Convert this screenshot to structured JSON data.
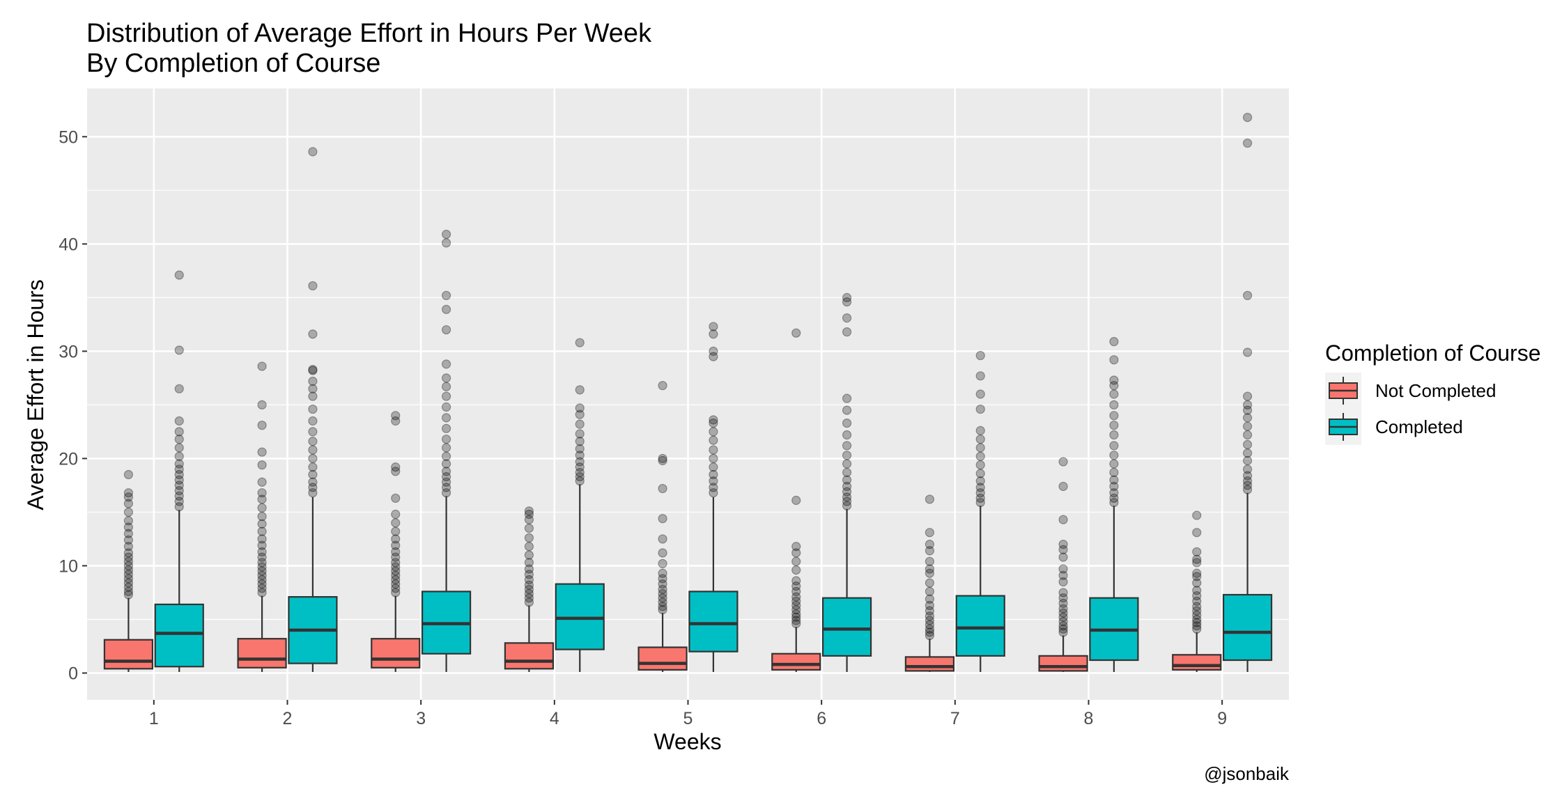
{
  "chart_data": {
    "type": "boxplot",
    "title": "Distribution of Average Effort in Hours Per Week",
    "subtitle": "By Completion of Course",
    "xlabel": "Weeks",
    "ylabel": "Average Effort in Hours",
    "caption": "@jsonbaik",
    "categories": [
      "1",
      "2",
      "3",
      "4",
      "5",
      "6",
      "7",
      "8",
      "9"
    ],
    "ylim": [
      -2.5,
      54.5
    ],
    "yticks": [
      0,
      10,
      20,
      30,
      40,
      50
    ],
    "grid": true,
    "panel_background": "#ebebeb",
    "legend": {
      "title": "Completion of Course",
      "position": "right",
      "entries": [
        "Not Completed",
        "Completed"
      ]
    },
    "series": [
      {
        "name": "Not Completed",
        "color": "#f8766d",
        "boxes": [
          {
            "week": "1",
            "min": 0.1,
            "q1": 0.4,
            "median": 1.1,
            "q3": 3.1,
            "whisker_high": 7.0,
            "outliers": [
              7.3,
              7.6,
              8.0,
              8.4,
              8.8,
              9.2,
              9.6,
              10.0,
              10.4,
              10.8,
              11.2,
              11.8,
              12.4,
              13.0,
              13.6,
              14.2,
              15.0,
              15.8,
              16.4,
              16.8,
              18.5
            ]
          },
          {
            "week": "2",
            "min": 0.1,
            "q1": 0.5,
            "median": 1.3,
            "q3": 3.2,
            "whisker_high": 7.2,
            "outliers": [
              7.5,
              7.9,
              8.3,
              8.7,
              9.1,
              9.5,
              9.9,
              10.3,
              10.8,
              11.3,
              11.9,
              12.5,
              13.2,
              13.9,
              14.6,
              15.4,
              16.2,
              16.8,
              17.8,
              19.4,
              20.6,
              23.1,
              25.0,
              28.6
            ]
          },
          {
            "week": "3",
            "min": 0.1,
            "q1": 0.5,
            "median": 1.3,
            "q3": 3.2,
            "whisker_high": 7.2,
            "outliers": [
              7.5,
              7.9,
              8.3,
              8.7,
              9.1,
              9.5,
              9.9,
              10.3,
              10.8,
              11.3,
              11.9,
              12.5,
              13.2,
              14.0,
              14.8,
              16.3,
              18.8,
              19.2,
              23.5,
              24.0
            ]
          },
          {
            "week": "4",
            "min": 0.1,
            "q1": 0.4,
            "median": 1.1,
            "q3": 2.8,
            "whisker_high": 6.3,
            "outliers": [
              6.6,
              7.0,
              7.4,
              7.8,
              8.2,
              8.7,
              9.2,
              9.7,
              10.3,
              11.0,
              11.8,
              12.6,
              13.5,
              14.3,
              14.8,
              15.1
            ]
          },
          {
            "week": "5",
            "min": 0.1,
            "q1": 0.3,
            "median": 0.9,
            "q3": 2.4,
            "whisker_high": 5.6,
            "outliers": [
              5.9,
              6.2,
              6.6,
              7.0,
              7.4,
              7.8,
              8.3,
              8.8,
              9.3,
              10.2,
              11.2,
              12.5,
              14.4,
              17.2,
              19.8,
              20.0,
              26.8
            ]
          },
          {
            "week": "6",
            "min": 0.1,
            "q1": 0.3,
            "median": 0.8,
            "q3": 1.8,
            "whisker_high": 4.3,
            "outliers": [
              4.6,
              4.9,
              5.2,
              5.5,
              5.9,
              6.3,
              6.7,
              7.1,
              7.6,
              8.1,
              8.6,
              9.6,
              10.4,
              11.2,
              11.8,
              16.1,
              31.7
            ]
          },
          {
            "week": "7",
            "min": 0.1,
            "q1": 0.2,
            "median": 0.6,
            "q3": 1.5,
            "whisker_high": 3.2,
            "outliers": [
              3.5,
              3.8,
              4.1,
              4.5,
              4.9,
              5.3,
              5.8,
              6.3,
              6.9,
              7.6,
              8.4,
              9.3,
              9.7,
              10.4,
              11.4,
              12.0,
              13.1,
              16.2
            ]
          },
          {
            "week": "8",
            "min": 0.1,
            "q1": 0.2,
            "median": 0.6,
            "q3": 1.6,
            "whisker_high": 3.5,
            "outliers": [
              3.8,
              4.1,
              4.4,
              4.8,
              5.2,
              5.6,
              6.0,
              6.5,
              7.0,
              7.5,
              8.5,
              9.1,
              9.7,
              10.8,
              11.5,
              12.0,
              14.3,
              17.4,
              19.7
            ]
          },
          {
            "week": "9",
            "min": 0.1,
            "q1": 0.3,
            "median": 0.7,
            "q3": 1.7,
            "whisker_high": 3.8,
            "outliers": [
              4.1,
              4.4,
              4.7,
              5.0,
              5.4,
              5.8,
              6.2,
              6.7,
              7.2,
              7.7,
              8.4,
              9.0,
              9.3,
              10.3,
              10.6,
              11.3,
              13.1,
              14.7
            ]
          }
        ]
      },
      {
        "name": "Completed",
        "color": "#00bfc4",
        "boxes": [
          {
            "week": "1",
            "min": 0.1,
            "q1": 0.6,
            "median": 3.7,
            "q3": 6.4,
            "whisker_high": 15.2,
            "outliers": [
              15.5,
              16.0,
              16.5,
              17.0,
              17.5,
              18.0,
              18.5,
              19.0,
              19.5,
              20.2,
              21.0,
              21.8,
              22.5,
              23.5,
              26.5,
              30.1,
              37.1
            ]
          },
          {
            "week": "2",
            "min": 0.1,
            "q1": 0.9,
            "median": 4.0,
            "q3": 7.1,
            "whisker_high": 16.4,
            "outliers": [
              16.8,
              17.3,
              17.8,
              18.5,
              19.2,
              20.0,
              20.8,
              21.6,
              22.5,
              23.5,
              24.6,
              25.8,
              26.5,
              27.2,
              28.2,
              28.3,
              31.6,
              36.1,
              48.6
            ]
          },
          {
            "week": "3",
            "min": 0.1,
            "q1": 1.8,
            "median": 4.6,
            "q3": 7.6,
            "whisker_high": 16.5,
            "outliers": [
              16.8,
              17.3,
              17.8,
              18.3,
              18.8,
              19.5,
              20.2,
              21.0,
              21.8,
              22.8,
              23.8,
              24.8,
              25.8,
              26.7,
              27.5,
              28.8,
              32.0,
              33.9,
              35.2,
              40.1,
              40.9
            ]
          },
          {
            "week": "4",
            "min": 0.1,
            "q1": 2.2,
            "median": 5.1,
            "q3": 8.3,
            "whisker_high": 17.6,
            "outliers": [
              17.9,
              18.3,
              18.7,
              19.2,
              19.7,
              20.3,
              20.9,
              21.6,
              22.3,
              23.2,
              24.1,
              24.7,
              26.4,
              30.8
            ]
          },
          {
            "week": "5",
            "min": 0.1,
            "q1": 2.0,
            "median": 4.6,
            "q3": 7.6,
            "whisker_high": 16.4,
            "outliers": [
              16.8,
              17.3,
              17.9,
              18.5,
              19.2,
              20.0,
              20.8,
              21.7,
              22.5,
              23.3,
              23.6,
              29.5,
              30.0,
              31.6,
              32.3
            ]
          },
          {
            "week": "6",
            "min": 0.1,
            "q1": 1.6,
            "median": 4.1,
            "q3": 7.0,
            "whisker_high": 15.3,
            "outliers": [
              15.6,
              16.0,
              16.4,
              16.9,
              17.4,
              18.0,
              18.7,
              19.5,
              20.3,
              21.2,
              22.2,
              23.3,
              24.5,
              25.6,
              31.8,
              33.1,
              34.6,
              35.0
            ]
          },
          {
            "week": "7",
            "min": 0.1,
            "q1": 1.6,
            "median": 4.2,
            "q3": 7.2,
            "whisker_high": 15.6,
            "outliers": [
              15.9,
              16.3,
              16.8,
              17.3,
              17.9,
              18.6,
              19.4,
              20.2,
              21.0,
              21.8,
              22.6,
              24.6,
              26.0,
              27.7,
              29.6
            ]
          },
          {
            "week": "8",
            "min": 0.1,
            "q1": 1.2,
            "median": 4.0,
            "q3": 7.0,
            "whisker_high": 15.6,
            "outliers": [
              15.9,
              16.3,
              16.8,
              17.4,
              18.0,
              18.7,
              19.5,
              20.3,
              21.2,
              22.2,
              23.1,
              24.0,
              25.0,
              26.0,
              26.8,
              27.3,
              29.2,
              30.9
            ]
          },
          {
            "week": "9",
            "min": 0.1,
            "q1": 1.2,
            "median": 3.8,
            "q3": 7.3,
            "whisker_high": 16.8,
            "outliers": [
              17.1,
              17.5,
              17.9,
              18.4,
              19.0,
              19.8,
              20.5,
              21.3,
              22.2,
              23.0,
              23.8,
              24.5,
              25.0,
              25.8,
              29.9,
              35.2,
              49.4,
              51.8
            ]
          }
        ]
      }
    ]
  }
}
